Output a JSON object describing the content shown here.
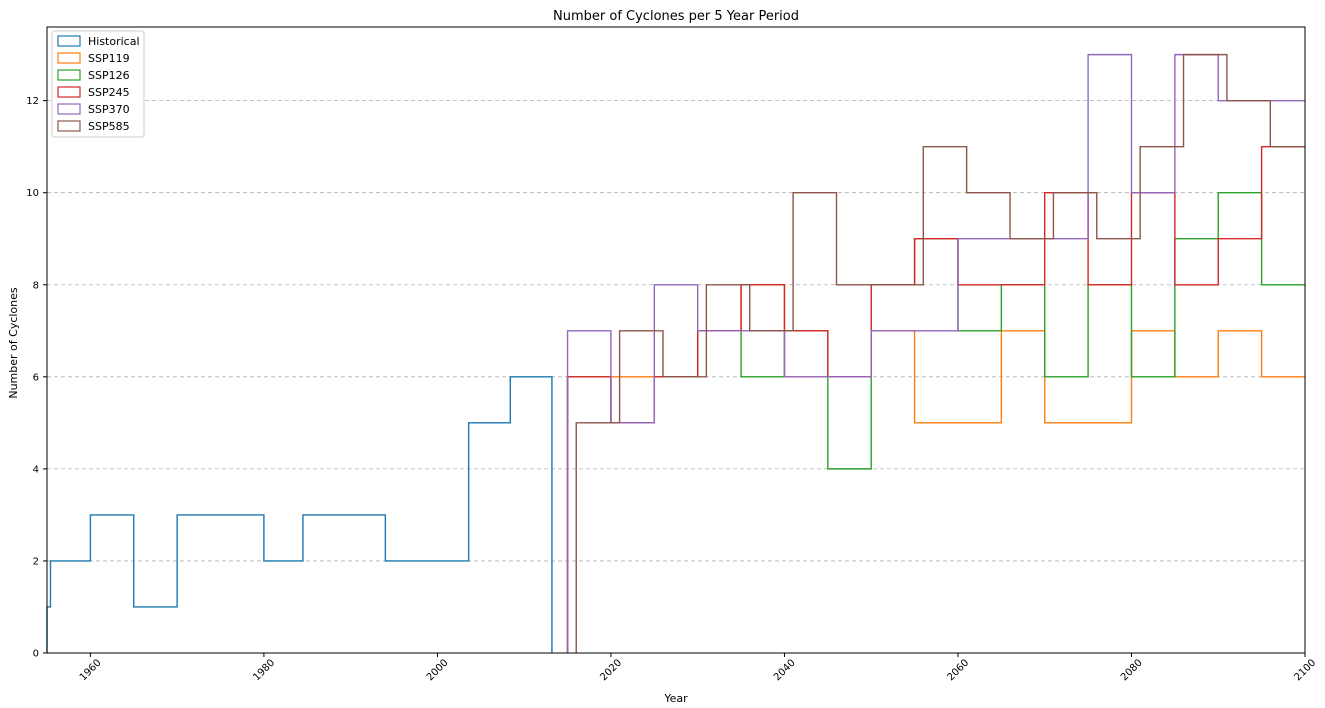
{
  "chart_data": {
    "type": "step",
    "title": "Number of Cyclones per 5 Year Period",
    "xlabel": "Year",
    "ylabel": "Number of Cyclones",
    "xlim": [
      1955,
      2100
    ],
    "ylim": [
      0,
      13.6
    ],
    "xticks": [
      1960,
      1980,
      2000,
      2020,
      2040,
      2060,
      2080,
      2100
    ],
    "yticks": [
      0,
      2,
      4,
      6,
      8,
      10,
      12
    ],
    "grid": "horizontal-dashed",
    "legend_position": "top-left",
    "series": [
      {
        "name": "Historical",
        "color": "#1f77b4",
        "x": [
          1955,
          1955.4,
          1960,
          1965,
          1970,
          1980,
          1984.5,
          1994,
          2003.6,
          2008.4,
          2013.2
        ],
        "y": [
          1,
          2,
          3,
          1,
          3,
          2,
          3,
          2,
          5,
          6,
          0
        ]
      },
      {
        "name": "SSP119",
        "color": "#ff7f0e",
        "x": [
          2015,
          2020,
          2025,
          2030,
          2035,
          2040,
          2045,
          2050,
          2055,
          2065,
          2070,
          2080,
          2085,
          2090,
          2095,
          2100
        ],
        "y": [
          6,
          6,
          6,
          7,
          8,
          6,
          6,
          7,
          5,
          7,
          5,
          7,
          6,
          7,
          6,
          6
        ]
      },
      {
        "name": "SSP126",
        "color": "#2ca02c",
        "x": [
          2015,
          2020,
          2025,
          2030,
          2035,
          2040,
          2045,
          2050,
          2055,
          2060,
          2065,
          2070,
          2075,
          2080,
          2085,
          2090,
          2095,
          2100
        ],
        "y": [
          6,
          5,
          6,
          7,
          6,
          7,
          4,
          8,
          9,
          7,
          8,
          6,
          8,
          6,
          9,
          10,
          8,
          8
        ]
      },
      {
        "name": "SSP245",
        "color": "#d62728",
        "x": [
          2015,
          2020,
          2025,
          2030,
          2035,
          2040,
          2045,
          2050,
          2055,
          2060,
          2065,
          2070,
          2075,
          2080,
          2085,
          2090,
          2095,
          2100
        ],
        "y": [
          6,
          5,
          6,
          7,
          8,
          7,
          6,
          8,
          9,
          8,
          8,
          10,
          8,
          10,
          8,
          9,
          11,
          11
        ]
      },
      {
        "name": "SSP370",
        "color": "#9467bd",
        "x": [
          2015,
          2020,
          2025,
          2030,
          2035,
          2040,
          2045,
          2050,
          2055,
          2060,
          2065,
          2070,
          2075,
          2080,
          2085,
          2090,
          2095,
          2100
        ],
        "y": [
          7,
          5,
          8,
          7,
          7,
          6,
          6,
          7,
          7,
          9,
          9,
          9,
          13,
          10,
          13,
          12,
          12,
          12
        ]
      },
      {
        "name": "SSP585",
        "color": "#8c564b",
        "x": [
          2016,
          2021,
          2026,
          2031,
          2036,
          2041,
          2046,
          2051,
          2056,
          2061,
          2066,
          2071,
          2076,
          2081,
          2086,
          2091,
          2096,
          2100
        ],
        "y": [
          5,
          7,
          6,
          8,
          7,
          10,
          8,
          8,
          11,
          10,
          9,
          10,
          9,
          11,
          13,
          12,
          11,
          11
        ]
      }
    ]
  }
}
